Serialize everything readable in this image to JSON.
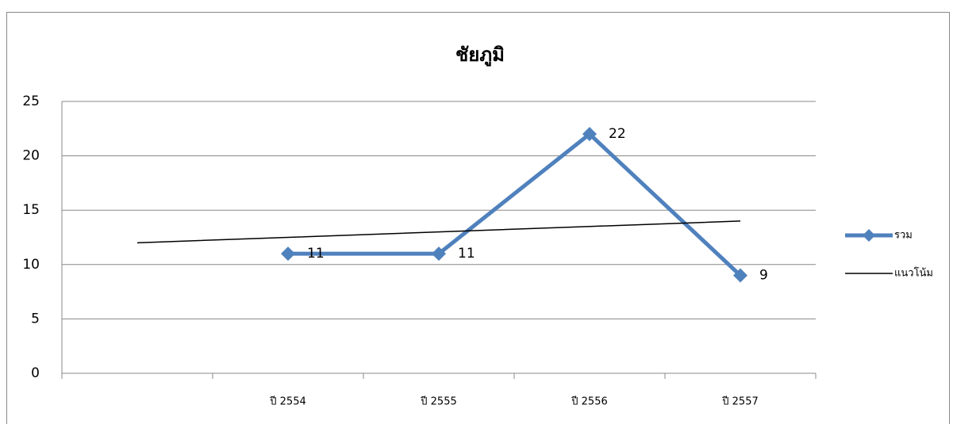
{
  "chart_data": {
    "type": "line",
    "title": "ชัยภูมิ",
    "categories": [
      null,
      "ปี 2554",
      "ปี 2555",
      "ปี 2556",
      "ปี 2557"
    ],
    "series": [
      {
        "name": "รวม",
        "color": "#4f81bd",
        "values": [
          null,
          11,
          11,
          22,
          9
        ],
        "markers": true,
        "data_labels": true
      },
      {
        "name": "แนวโน้ม",
        "color": "#000000",
        "values": [
          12,
          12.5,
          13,
          13.5,
          14
        ],
        "markers": false,
        "data_labels": false
      }
    ],
    "ylim": [
      0,
      25
    ],
    "yticks": [
      0,
      5,
      10,
      15,
      20,
      25
    ],
    "grid": true,
    "legend": "right"
  }
}
